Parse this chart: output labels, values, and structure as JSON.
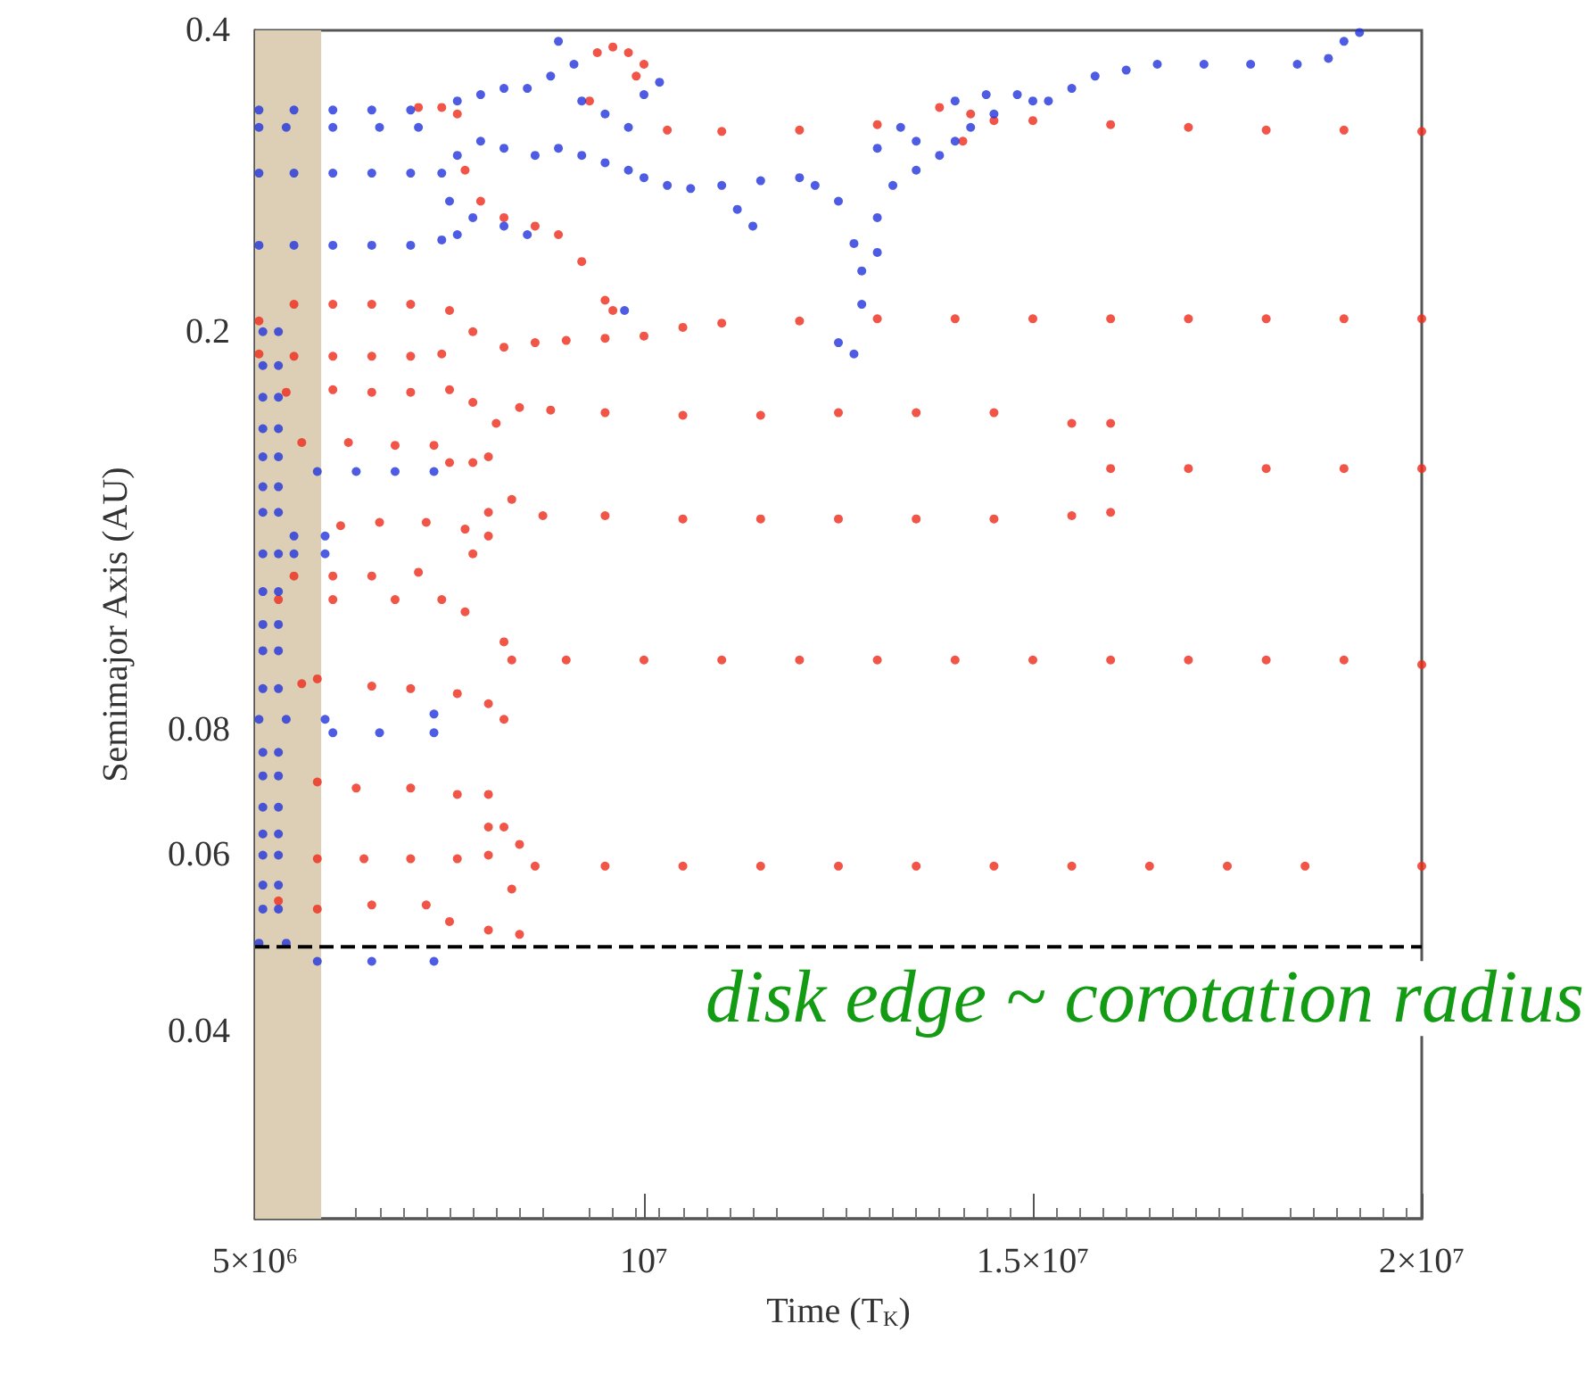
{
  "chart_data": {
    "type": "scatter",
    "xlabel": "Time (T$_{K}$)",
    "ylabel": "Semimajor Axis (AU)",
    "xlim": [
      5000000.0,
      20000000.0
    ],
    "xticks": [
      {
        "value": 5000000.0,
        "label": "5×10⁶"
      },
      {
        "value": 10000000.0,
        "label": "10⁷"
      },
      {
        "value": 15000000.0,
        "label": "1.5×10⁷"
      },
      {
        "value": 20000000.0,
        "label": "2×10⁷"
      }
    ],
    "ylim": [
      0.026,
      0.4
    ],
    "yticks": [
      0.04,
      0.06,
      0.08,
      0.2,
      0.4
    ],
    "log": "y",
    "grid": false,
    "marker": "circle",
    "ref_lines": [
      {
        "axis": "y",
        "value": 0.0486,
        "label": "disk edge ~ corotation radius",
        "color": "#000000",
        "line_style": "dashed"
      }
    ],
    "bands": [
      {
        "axis": "x",
        "from": 5000000.0,
        "to": 5850000.0,
        "color": "#dccfb5"
      }
    ],
    "series": [
      {
        "color": "#ee2a1a",
        "x": [
          7100000.0,
          7400000.0,
          7600000.0,
          9400000.0,
          9600000.0,
          9800000.0,
          9900000.0,
          10000000.0,
          9300000.0,
          7700000.0,
          7900000.0,
          8200000.0,
          8600000.0,
          8900000.0,
          9200000.0,
          9500000.0,
          9600000.0,
          10300000.0,
          11000000.0,
          12000000.0,
          13000000.0,
          13800000.0,
          14100000.0,
          14200000.0,
          14500000.0,
          15000000.0,
          16000000.0,
          17000000.0,
          18000000.0,
          19000000.0,
          20000000.0,
          5050000.0,
          5500000.0,
          6000000.0,
          6500000.0,
          7000000.0,
          7500000.0,
          7800000.0,
          8200000.0,
          8600000.0,
          9000000.0,
          9500000.0,
          10000000.0,
          10500000.0,
          11000000.0,
          12000000.0,
          13000000.0,
          14000000.0,
          15000000.0,
          16000000.0,
          17000000.0,
          18000000.0,
          19000000.0,
          20000000.0,
          5050000.0,
          5500000.0,
          6000000.0,
          6500000.0,
          7000000.0,
          7400000.0,
          5400000.0,
          6000000.0,
          6500000.0,
          7000000.0,
          7500000.0,
          7800000.0,
          8100000.0,
          8400000.0,
          8800000.0,
          9500000.0,
          10500000.0,
          11500000.0,
          12500000.0,
          13500000.0,
          14500000.0,
          15500000.0,
          16000000.0,
          5600000.0,
          6200000.0,
          6800000.0,
          7300000.0,
          7500000.0,
          7800000.0,
          8000000.0,
          16000000.0,
          17000000.0,
          18000000.0,
          19000000.0,
          20000000.0,
          6100000.0,
          6600000.0,
          7200000.0,
          7700000.0,
          8000000.0,
          8300000.0,
          8700000.0,
          9500000.0,
          10500000.0,
          11500000.0,
          12500000.0,
          13500000.0,
          14500000.0,
          15500000.0,
          16000000.0,
          7800000.0,
          8000000.0,
          5500000.0,
          6000000.0,
          6500000.0,
          7100000.0,
          7400000.0,
          7700000.0,
          5300000.0,
          6000000.0,
          6800000.0,
          8300000.0,
          9000000.0,
          10000000.0,
          11000000.0,
          12000000.0,
          13000000.0,
          14000000.0,
          15000000.0,
          16000000.0,
          17000000.0,
          18000000.0,
          19000000.0,
          20000000.0,
          8200000.0,
          8200000.0,
          5600000.0,
          5800000.0,
          6500000.0,
          7000000.0,
          7600000.0,
          8000000.0,
          5800000.0,
          6300000.0,
          7000000.0,
          7600000.0,
          8000000.0,
          8000000.0,
          8200000.0,
          8400000.0,
          5800000.0,
          6400000.0,
          7000000.0,
          7600000.0,
          8000000.0,
          8600000.0,
          9500000.0,
          10500000.0,
          11500000.0,
          12500000.0,
          13500000.0,
          14500000.0,
          15500000.0,
          16500000.0,
          17500000.0,
          18500000.0,
          20000000.0,
          8300000.0,
          5300000.0,
          5800000.0,
          6500000.0,
          7200000.0,
          7500000.0,
          8000000.0,
          8400000.0
        ],
        "values": [
          0.335,
          0.335,
          0.33,
          0.38,
          0.385,
          0.38,
          0.36,
          0.37,
          0.34,
          0.29,
          0.27,
          0.26,
          0.255,
          0.25,
          0.235,
          0.215,
          0.21,
          0.318,
          0.317,
          0.318,
          0.322,
          0.335,
          0.31,
          0.33,
          0.325,
          0.325,
          0.322,
          0.32,
          0.318,
          0.318,
          0.317,
          0.205,
          0.213,
          0.213,
          0.213,
          0.213,
          0.21,
          0.2,
          0.193,
          0.195,
          0.196,
          0.197,
          0.198,
          0.202,
          0.204,
          0.205,
          0.206,
          0.206,
          0.206,
          0.206,
          0.206,
          0.206,
          0.206,
          0.206,
          0.19,
          0.189,
          0.189,
          0.189,
          0.189,
          0.19,
          0.174,
          0.175,
          0.174,
          0.174,
          0.175,
          0.17,
          0.162,
          0.168,
          0.167,
          0.166,
          0.165,
          0.165,
          0.166,
          0.166,
          0.166,
          0.162,
          0.162,
          0.155,
          0.155,
          0.154,
          0.154,
          0.148,
          0.148,
          0.15,
          0.146,
          0.146,
          0.146,
          0.146,
          0.146,
          0.128,
          0.129,
          0.129,
          0.127,
          0.132,
          0.136,
          0.131,
          0.131,
          0.13,
          0.13,
          0.13,
          0.13,
          0.13,
          0.131,
          0.132,
          0.12,
          0.125,
          0.114,
          0.114,
          0.114,
          0.115,
          0.108,
          0.105,
          0.108,
          0.108,
          0.108,
          0.094,
          0.094,
          0.094,
          0.094,
          0.094,
          0.094,
          0.094,
          0.094,
          0.094,
          0.094,
          0.094,
          0.094,
          0.093,
          0.098,
          0.082,
          0.089,
          0.09,
          0.0885,
          0.088,
          0.087,
          0.085,
          0.071,
          0.07,
          0.07,
          0.069,
          0.069,
          0.064,
          0.064,
          0.0615,
          0.0595,
          0.0595,
          0.0595,
          0.0595,
          0.06,
          0.0585,
          0.0585,
          0.0585,
          0.0585,
          0.0585,
          0.0585,
          0.0585,
          0.0585,
          0.0585,
          0.0585,
          0.0585,
          0.0585,
          0.0555,
          0.054,
          0.053,
          0.0535,
          0.0535,
          0.0515,
          0.0505,
          0.05
        ]
      },
      {
        "color": "#2233dd",
        "x": [
          5050000.0,
          5500000.0,
          6000000.0,
          6500000.0,
          7000000.0,
          5050000.0,
          5400000.0,
          6000000.0,
          6600000.0,
          7100000.0,
          5050000.0,
          5500000.0,
          6000000.0,
          6500000.0,
          7000000.0,
          7400000.0,
          5050000.0,
          5500000.0,
          6000000.0,
          6500000.0,
          7000000.0,
          7400000.0,
          5800000.0,
          6300000.0,
          6800000.0,
          7300000.0,
          5500000.0,
          5900000.0,
          5500000.0,
          5900000.0,
          5050000.0,
          5400000.0,
          5900000.0,
          6000000.0,
          6600000.0,
          7300000.0,
          7300000.0,
          5050000.0,
          5400000.0,
          5800000.0,
          6500000.0,
          7300000.0,
          5100000.0,
          5300000.0,
          5100000.0,
          5300000.0,
          5100000.0,
          5300000.0,
          5100000.0,
          5300000.0,
          5100000.0,
          5300000.0,
          5100000.0,
          5300000.0,
          5100000.0,
          5300000.0,
          5100000.0,
          5300000.0,
          5100000.0,
          5300000.0,
          5100000.0,
          5300000.0,
          5100000.0,
          5300000.0,
          5100000.0,
          5300000.0,
          5100000.0,
          5300000.0,
          5100000.0,
          5300000.0,
          5100000.0,
          5300000.0,
          5100000.0,
          5300000.0,
          5100000.0,
          5300000.0,
          5100000.0,
          5300000.0,
          5100000.0,
          5300000.0,
          7600000.0,
          7900000.0,
          8200000.0,
          8500000.0,
          8800000.0,
          9100000.0,
          8900000.0,
          9200000.0,
          9500000.0,
          9800000.0,
          10000000.0,
          10200000.0,
          7600000.0,
          7900000.0,
          8200000.0,
          8600000.0,
          8900000.0,
          9200000.0,
          9500000.0,
          9800000.0,
          10000000.0,
          10300000.0,
          10600000.0,
          11000000.0,
          11500000.0,
          12000000.0,
          12200000.0,
          7500000.0,
          7600000.0,
          7800000.0,
          8200000.0,
          8500000.0,
          9750000.0,
          11200000.0,
          11400000.0,
          12500000.0,
          12700000.0,
          12800000.0,
          13000000.0,
          13200000.0,
          13500000.0,
          13800000.0,
          14000000.0,
          14200000.0,
          14500000.0,
          14800000.0,
          15000000.0,
          13000000.0,
          12800000.0,
          12700000.0,
          12500000.0,
          13000000.0,
          13500000.0,
          13300000.0,
          14000000.0,
          14400000.0,
          15200000.0,
          15500000.0,
          15800000.0,
          16200000.0,
          16600000.0,
          17200000.0,
          17800000.0,
          18400000.0,
          18800000.0,
          19000000.0,
          19200000.0
        ],
        "values": [
          0.333,
          0.333,
          0.333,
          0.333,
          0.333,
          0.32,
          0.32,
          0.32,
          0.32,
          0.32,
          0.288,
          0.288,
          0.288,
          0.288,
          0.288,
          0.288,
          0.244,
          0.244,
          0.244,
          0.244,
          0.244,
          0.247,
          0.145,
          0.145,
          0.145,
          0.145,
          0.125,
          0.125,
          0.12,
          0.12,
          0.082,
          0.082,
          0.082,
          0.0795,
          0.0795,
          0.0795,
          0.083,
          0.049,
          0.049,
          0.047,
          0.047,
          0.047,
          0.2,
          0.2,
          0.185,
          0.185,
          0.172,
          0.172,
          0.16,
          0.16,
          0.15,
          0.15,
          0.14,
          0.14,
          0.132,
          0.132,
          0.12,
          0.12,
          0.11,
          0.11,
          0.102,
          0.102,
          0.096,
          0.096,
          0.088,
          0.088,
          0.076,
          0.076,
          0.072,
          0.072,
          0.067,
          0.067,
          0.063,
          0.063,
          0.06,
          0.06,
          0.056,
          0.056,
          0.053,
          0.053,
          0.34,
          0.345,
          0.35,
          0.35,
          0.36,
          0.37,
          0.39,
          0.34,
          0.33,
          0.32,
          0.345,
          0.355,
          0.3,
          0.31,
          0.305,
          0.3,
          0.305,
          0.3,
          0.295,
          0.29,
          0.285,
          0.28,
          0.278,
          0.28,
          0.283,
          0.285,
          0.28,
          0.27,
          0.25,
          0.26,
          0.255,
          0.25,
          0.21,
          0.265,
          0.255,
          0.27,
          0.245,
          0.23,
          0.26,
          0.28,
          0.29,
          0.3,
          0.31,
          0.32,
          0.33,
          0.345,
          0.34,
          0.24,
          0.213,
          0.19,
          0.195,
          0.305,
          0.31,
          0.32,
          0.34,
          0.345,
          0.34,
          0.35,
          0.36,
          0.365,
          0.37,
          0.37,
          0.37,
          0.37,
          0.375,
          0.39,
          0.398
        ]
      }
    ]
  }
}
